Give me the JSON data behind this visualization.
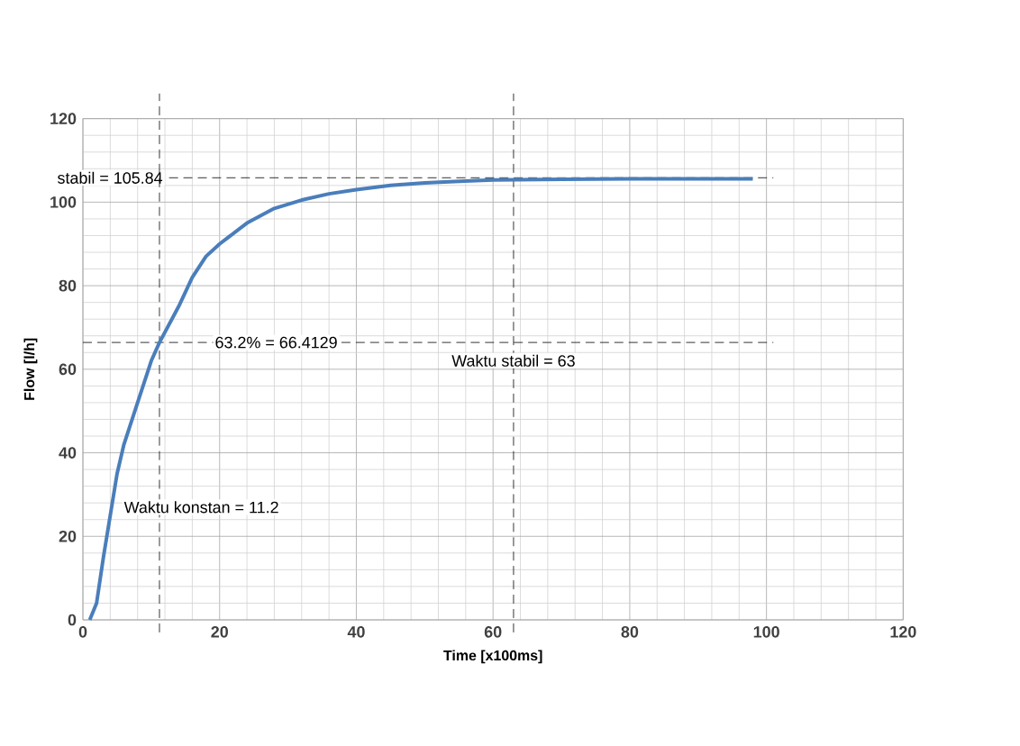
{
  "chart_data": {
    "type": "line",
    "xlabel": "Time [x100ms]",
    "ylabel": "Flow [l/h]",
    "x": [
      1,
      2,
      3,
      4,
      5,
      6,
      8,
      10,
      11.2,
      14,
      16,
      18,
      20,
      24,
      28,
      32,
      36,
      40,
      45,
      50,
      55,
      60,
      70,
      80,
      90,
      98
    ],
    "series": [
      {
        "color": "#4a7ebb",
        "values": [
          0,
          4,
          15,
          25,
          35,
          42,
          52,
          62,
          66.4,
          75,
          82,
          87,
          90,
          95,
          98.5,
          100.5,
          102,
          103,
          104,
          104.6,
          105,
          105.3,
          105.5,
          105.6,
          105.6,
          105.6
        ]
      }
    ],
    "xlim": [
      0,
      120
    ],
    "ylim": [
      0,
      120
    ],
    "xticks": [
      0,
      20,
      40,
      60,
      80,
      100,
      120
    ],
    "yticks": [
      0,
      20,
      40,
      60,
      80,
      100,
      120
    ],
    "grid": true,
    "marker": "none",
    "line_style": "solid",
    "ref_lines": [
      {
        "axis": "y",
        "value": 105.84,
        "label": "stabil = 105.84",
        "color": "#000000",
        "line_style": "dashed"
      },
      {
        "axis": "y",
        "value": 66.4129,
        "label": "63.2% = 66.4129",
        "color": "#000000",
        "line_style": "dashed"
      },
      {
        "axis": "x",
        "value": 11.2,
        "label": "Waktu konstan = 11.2",
        "color": "#000000",
        "line_style": "dashed"
      },
      {
        "axis": "x",
        "value": 63,
        "label": "Waktu stabil = 63",
        "color": "#000000",
        "line_style": "dashed"
      }
    ]
  }
}
